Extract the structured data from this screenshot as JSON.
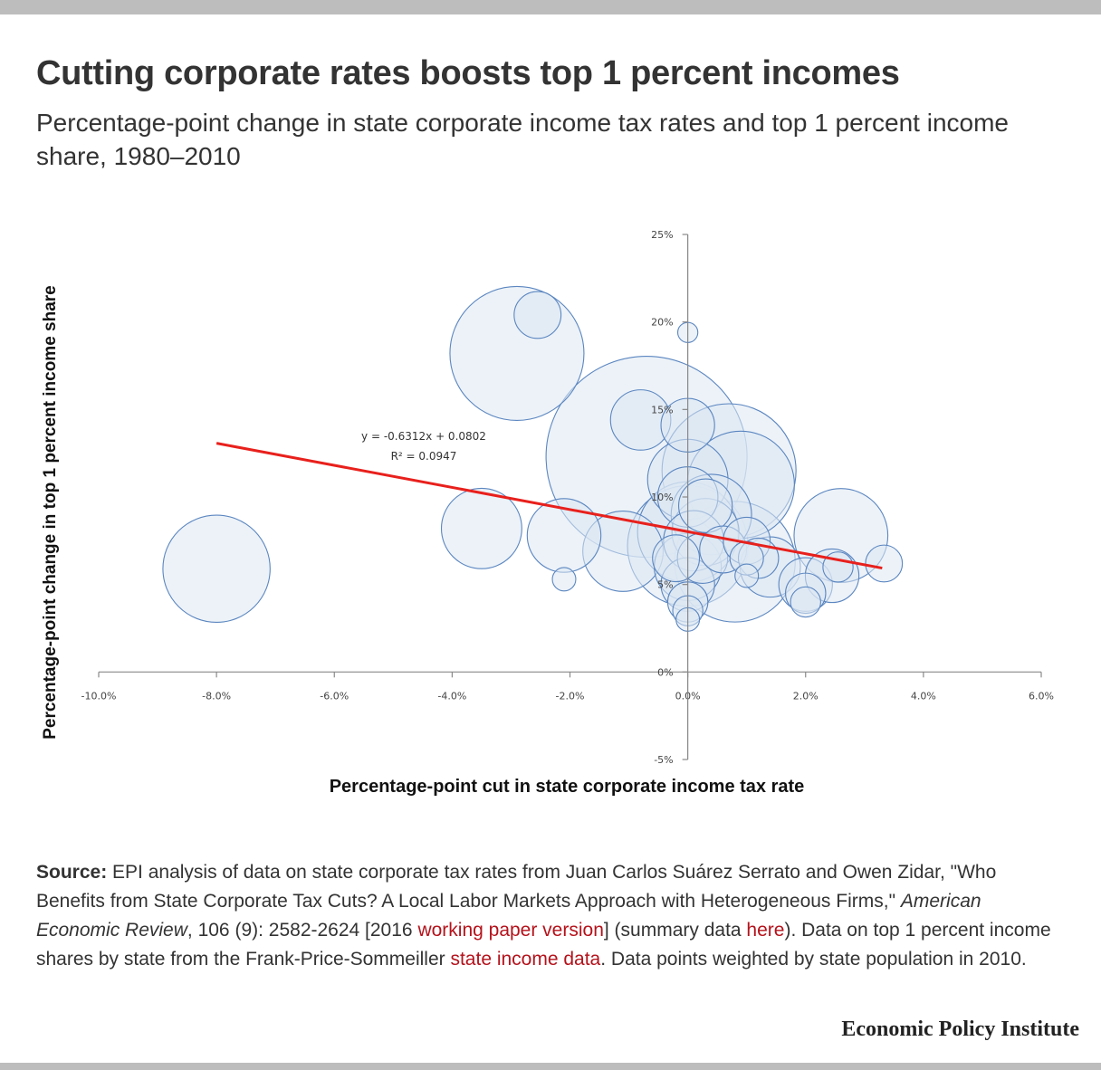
{
  "title": "Cutting corporate rates boosts top 1 percent incomes",
  "subtitle": "Percentage-point change in state corporate income tax rates and top 1 percent income share, 1980–2010",
  "source": {
    "label": "Source:",
    "text1": " EPI analysis of data on state corporate tax rates from Juan Carlos Suárez Serrato and Owen Zidar, \"Who Benefits from State Corporate Tax Cuts? A Local Labor Markets Approach with Heterogeneous Firms,\" ",
    "journal": "American Economic Review",
    "text2": ", 106 (9): 2582-2624 [2016 ",
    "link1": "working paper version",
    "text3": "] (summary data ",
    "link2": "here",
    "text4": "). Data on top 1 percent income shares by state from the Frank-Price-Sommeiller ",
    "link3": "state income data",
    "text5": ". Data points weighted by state population in 2010."
  },
  "brand": "Economic Policy Institute",
  "chart_data": {
    "type": "scatter",
    "bubble": true,
    "xlabel": "Percentage-point cut in state corporate income tax rate",
    "ylabel": "Percentage-point change in top 1 percent income share",
    "xlim": [
      -0.1,
      0.06
    ],
    "ylim": [
      -0.05,
      0.25
    ],
    "xticks": [
      -0.1,
      -0.08,
      -0.06,
      -0.04,
      -0.02,
      0.0,
      0.02,
      0.04,
      0.06
    ],
    "xtick_labels": [
      "-10.0%",
      "-8.0%",
      "-6.0%",
      "-4.0%",
      "-2.0%",
      "0.0%",
      "2.0%",
      "4.0%",
      "6.0%"
    ],
    "yticks": [
      -0.05,
      0.0,
      0.05,
      0.1,
      0.15,
      0.2,
      0.25
    ],
    "ytick_labels": [
      "-5%",
      "0%",
      "5%",
      "10%",
      "15%",
      "20%",
      "25%"
    ],
    "grid": false,
    "legend": "none",
    "bubble_fill": "#dde7f3",
    "bubble_stroke": "#5b86c0",
    "trendline": {
      "slope": -0.6312,
      "intercept": 0.0802,
      "x_range": [
        -0.08,
        0.033
      ],
      "equation": "y = -0.6312x + 0.0802",
      "r2": "R² = 0.0947",
      "color": "#e8201c"
    },
    "points": [
      {
        "x": -0.08,
        "y": 0.059,
        "size": 1.6
      },
      {
        "x": -0.029,
        "y": 0.182,
        "size": 2.0
      },
      {
        "x": -0.0255,
        "y": 0.204,
        "size": 0.7
      },
      {
        "x": -0.035,
        "y": 0.082,
        "size": 1.2
      },
      {
        "x": -0.021,
        "y": 0.078,
        "size": 1.1
      },
      {
        "x": -0.021,
        "y": 0.053,
        "size": 0.35
      },
      {
        "x": -0.007,
        "y": 0.123,
        "size": 3.0
      },
      {
        "x": -0.008,
        "y": 0.144,
        "size": 0.9
      },
      {
        "x": -0.011,
        "y": 0.069,
        "size": 1.2
      },
      {
        "x": 0.0,
        "y": 0.194,
        "size": 0.3
      },
      {
        "x": 0.0,
        "y": 0.141,
        "size": 0.8
      },
      {
        "x": 0.0,
        "y": 0.1,
        "size": 0.9
      },
      {
        "x": 0.0,
        "y": 0.11,
        "size": 1.2
      },
      {
        "x": 0.0,
        "y": 0.072,
        "size": 1.8
      },
      {
        "x": 0.0,
        "y": 0.08,
        "size": 1.5
      },
      {
        "x": 0.0,
        "y": 0.06,
        "size": 1.0
      },
      {
        "x": 0.0,
        "y": 0.05,
        "size": 0.8
      },
      {
        "x": 0.0,
        "y": 0.04,
        "size": 0.6
      },
      {
        "x": 0.0,
        "y": 0.035,
        "size": 0.45
      },
      {
        "x": 0.0,
        "y": 0.03,
        "size": 0.35
      },
      {
        "x": -0.002,
        "y": 0.065,
        "size": 0.7
      },
      {
        "x": 0.001,
        "y": 0.075,
        "size": 0.9
      },
      {
        "x": 0.0025,
        "y": 0.065,
        "size": 0.75
      },
      {
        "x": 0.003,
        "y": 0.08,
        "size": 1.0
      },
      {
        "x": 0.003,
        "y": 0.095,
        "size": 0.8
      },
      {
        "x": 0.004,
        "y": 0.09,
        "size": 1.2
      },
      {
        "x": 0.006,
        "y": 0.07,
        "size": 0.7
      },
      {
        "x": 0.007,
        "y": 0.115,
        "size": 2.0
      },
      {
        "x": 0.009,
        "y": 0.107,
        "size": 1.6
      },
      {
        "x": 0.008,
        "y": 0.063,
        "size": 1.8
      },
      {
        "x": 0.01,
        "y": 0.075,
        "size": 0.7
      },
      {
        "x": 0.01,
        "y": 0.065,
        "size": 0.5
      },
      {
        "x": 0.01,
        "y": 0.055,
        "size": 0.35
      },
      {
        "x": 0.012,
        "y": 0.065,
        "size": 0.6
      },
      {
        "x": 0.014,
        "y": 0.06,
        "size": 0.9
      },
      {
        "x": 0.02,
        "y": 0.05,
        "size": 0.8
      },
      {
        "x": 0.02,
        "y": 0.045,
        "size": 0.6
      },
      {
        "x": 0.02,
        "y": 0.04,
        "size": 0.45
      },
      {
        "x": 0.0245,
        "y": 0.055,
        "size": 0.8
      },
      {
        "x": 0.0255,
        "y": 0.06,
        "size": 0.45
      },
      {
        "x": 0.026,
        "y": 0.078,
        "size": 1.4
      },
      {
        "x": 0.0333,
        "y": 0.062,
        "size": 0.55
      }
    ]
  }
}
